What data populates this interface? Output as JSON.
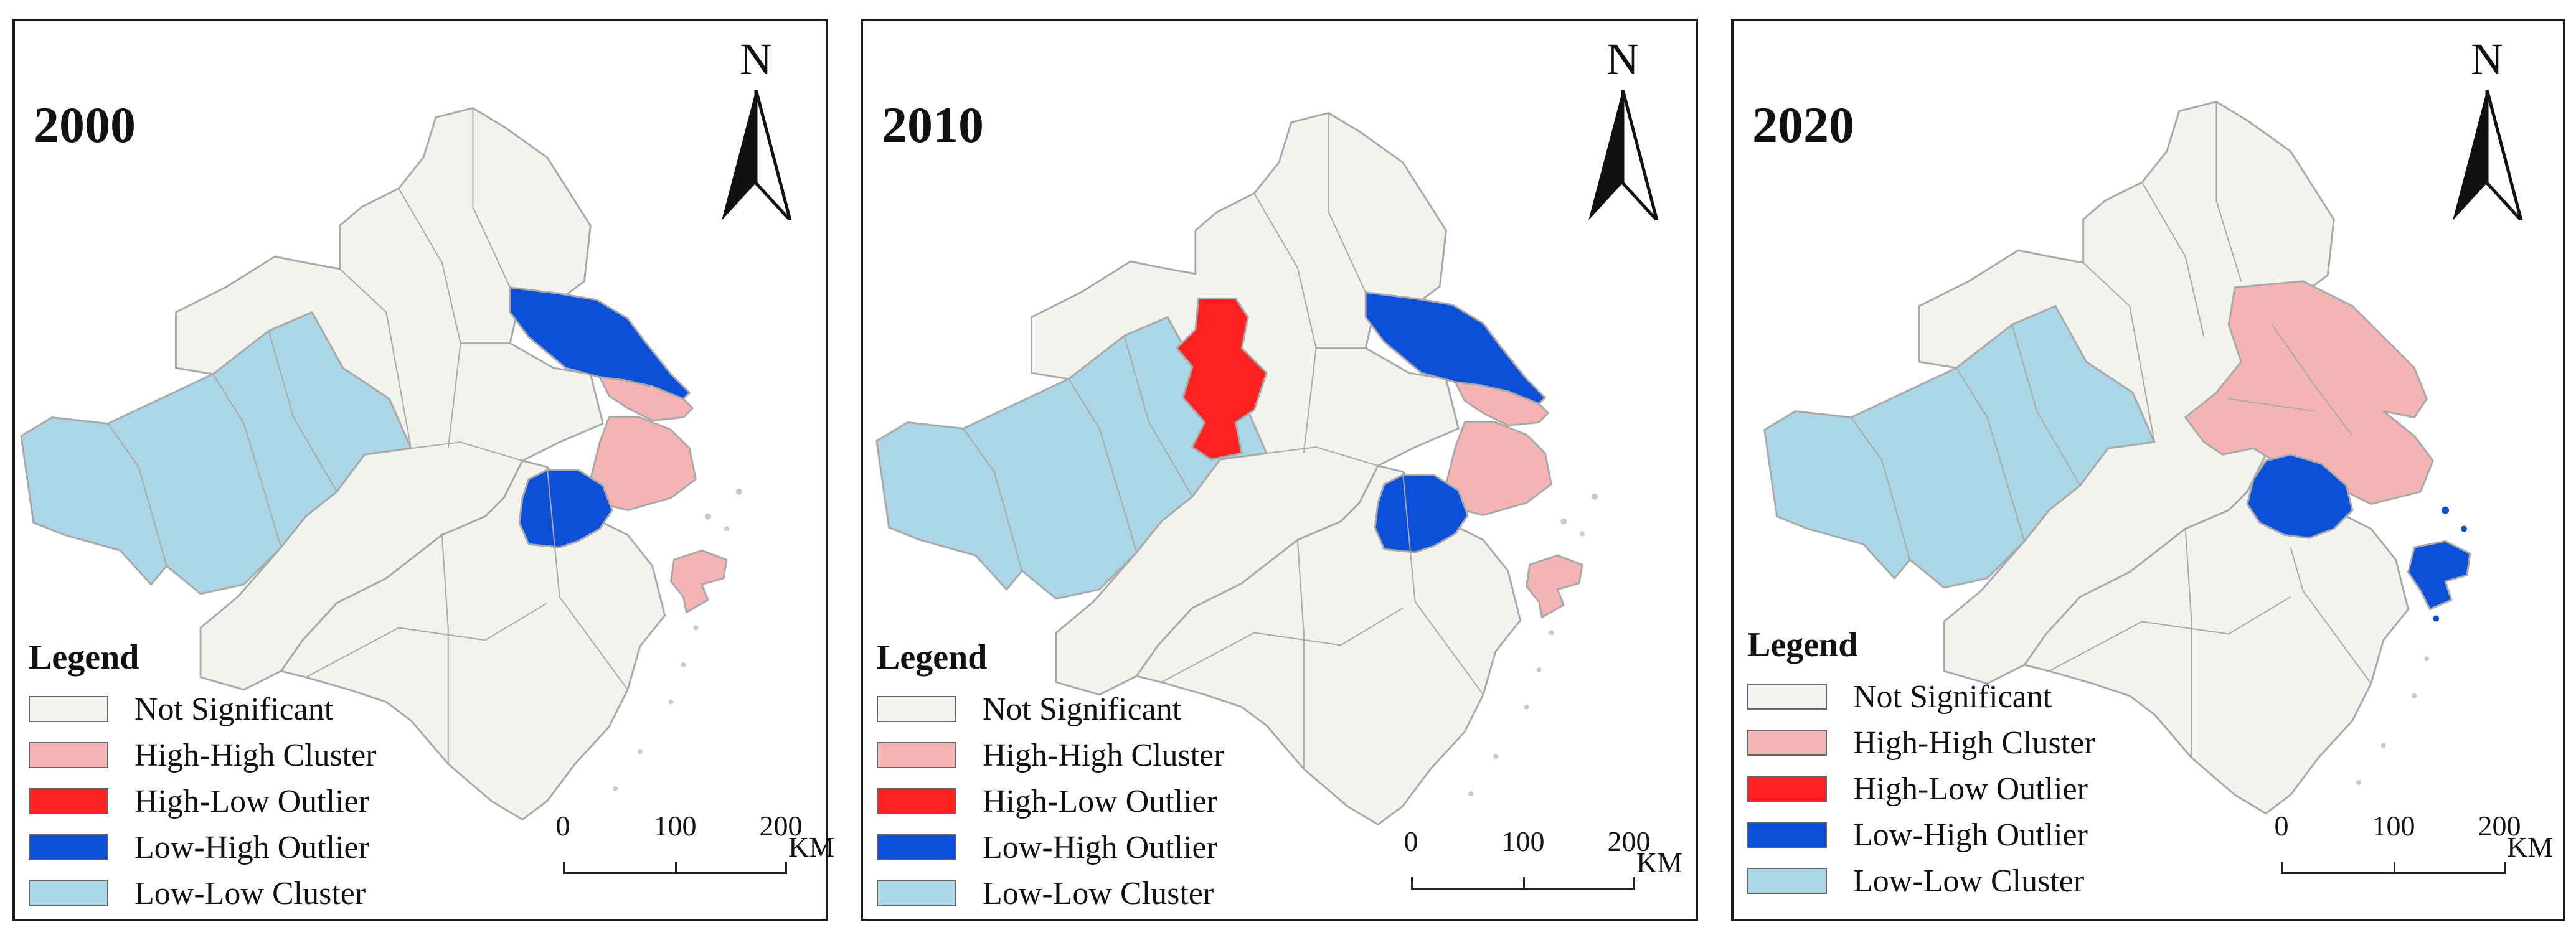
{
  "colors": {
    "not_significant": "#f2f2ee",
    "high_high": "#f4b4b4",
    "high_low": "#ff2020",
    "low_high": "#0c4fd8",
    "low_low": "#abd6e6",
    "boundary": "#a9a9a9"
  },
  "legend": {
    "title": "Legend",
    "items": [
      {
        "label": "Not Significant",
        "color": "#f2f2ee"
      },
      {
        "label": "High-High Cluster",
        "color": "#f4b4b4"
      },
      {
        "label": "High-Low Outlier",
        "color": "#ff2020"
      },
      {
        "label": "Low-High Outlier",
        "color": "#0c4fd8"
      },
      {
        "label": "Low-Low Cluster",
        "color": "#abd6e6"
      }
    ]
  },
  "north_label": "N",
  "scale": {
    "ticks": [
      "0",
      "100",
      "200"
    ],
    "unit": "KM"
  },
  "maps": [
    {
      "year": "2000"
    },
    {
      "year": "2010"
    },
    {
      "year": "2020"
    }
  ]
}
